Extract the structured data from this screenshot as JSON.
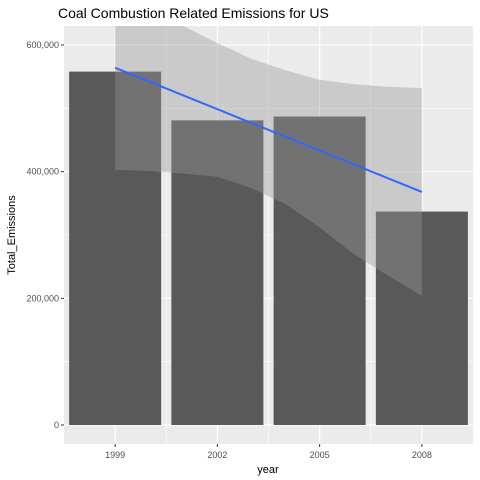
{
  "chart_data": {
    "type": "bar",
    "title": "Coal Combustion Related Emissions for US",
    "xlabel": "year",
    "ylabel": "Total_Emissions",
    "categories": [
      "1999",
      "2002",
      "2005",
      "2008"
    ],
    "values": [
      558000,
      481000,
      487000,
      337000
    ],
    "ylim": [
      -30000,
      630000
    ],
    "y_ticks": [
      0,
      200000,
      400000,
      600000
    ],
    "y_tick_labels": [
      "0",
      "200,000",
      "400,000",
      "600,000"
    ],
    "trend": {
      "method": "linear fit with confidence band",
      "x": [
        1999,
        2008
      ],
      "y": [
        564000,
        368000
      ],
      "band": [
        {
          "x": 1999,
          "lower": 403000,
          "upper": 730000
        },
        {
          "x": 2000,
          "lower": 401000,
          "upper": 683000
        },
        {
          "x": 2001,
          "lower": 397000,
          "upper": 640000
        },
        {
          "x": 2002,
          "lower": 392000,
          "upper": 603000
        },
        {
          "x": 2003,
          "lower": 374000,
          "upper": 578000
        },
        {
          "x": 2004,
          "lower": 349000,
          "upper": 560000
        },
        {
          "x": 2005,
          "lower": 312000,
          "upper": 545000
        },
        {
          "x": 2006,
          "lower": 270000,
          "upper": 538000
        },
        {
          "x": 2007,
          "lower": 236000,
          "upper": 534000
        },
        {
          "x": 2008,
          "lower": 204000,
          "upper": 532000
        }
      ]
    },
    "grid": true,
    "legend": "none",
    "colors": {
      "panel": "#ebebeb",
      "grid": "#ffffff",
      "bar": "#595959",
      "band": "#999999",
      "line": "#3366ff"
    }
  }
}
